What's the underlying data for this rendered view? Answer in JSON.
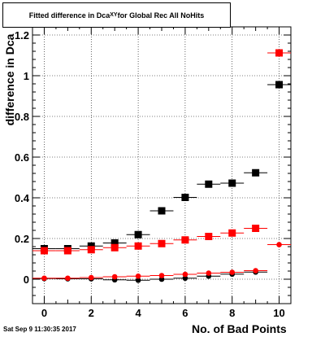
{
  "title": {
    "main": "Fitted difference in Dca",
    "sub": "XY",
    "tail": " for Global Rec All NoHits"
  },
  "footer_date": "Sat Sep  9 11:30:35 2017",
  "chart_data": {
    "type": "scatter",
    "xlabel": "No. of Bad Points",
    "ylabel": "difference in Dca",
    "xlim": [
      -0.5,
      10.5
    ],
    "ylim": [
      -0.12,
      1.24
    ],
    "xticks": [
      0,
      2,
      4,
      6,
      8,
      10
    ],
    "yticks": [
      0,
      0.2,
      0.4,
      0.6,
      0.8,
      1,
      1.2
    ],
    "ytick_labels": [
      "0",
      "0.2",
      "0.4",
      "0.6",
      "0.8",
      "1",
      "1.2"
    ],
    "grid": true,
    "series": [
      {
        "marker": "square",
        "color": "#000000",
        "x": [
          0,
          1,
          2,
          3,
          4,
          5,
          6,
          7,
          8,
          9,
          10
        ],
        "y": [
          0.15,
          0.15,
          0.163,
          0.178,
          0.219,
          0.336,
          0.402,
          0.467,
          0.472,
          0.523,
          0.956
        ]
      },
      {
        "marker": "square",
        "color": "#ff0000",
        "x": [
          0,
          1,
          2,
          3,
          4,
          5,
          6,
          7,
          8,
          9,
          10
        ],
        "y": [
          0.14,
          0.14,
          0.145,
          0.155,
          0.163,
          0.175,
          0.193,
          0.21,
          0.227,
          0.25,
          1.112
        ]
      },
      {
        "marker": "circle",
        "color": "#000000",
        "x": [
          0,
          1,
          2,
          3,
          4,
          5,
          6,
          7,
          8,
          9
        ],
        "y": [
          0.003,
          0.002,
          0.002,
          -0.003,
          -0.005,
          0.0,
          0.005,
          0.015,
          0.025,
          0.035
        ]
      },
      {
        "marker": "circle",
        "color": "#ff0000",
        "x": [
          0,
          1,
          2,
          3,
          4,
          5,
          6,
          7,
          8,
          9,
          10
        ],
        "y": [
          0.005,
          0.005,
          0.008,
          0.012,
          0.015,
          0.018,
          0.024,
          0.03,
          0.034,
          0.042,
          0.17
        ]
      }
    ]
  }
}
